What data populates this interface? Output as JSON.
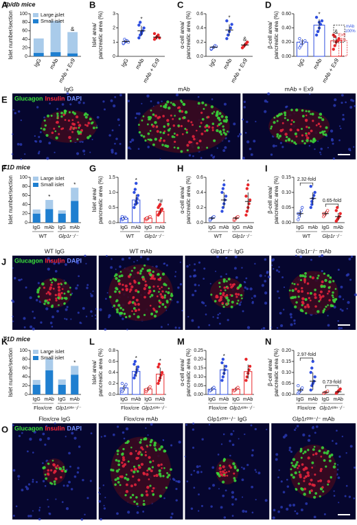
{
  "sections": [
    "db/db mice",
    "T1D mice",
    "T1D mice"
  ],
  "images": [
    {
      "panel": "E",
      "stains": [
        "Glucagon",
        "Insulin",
        "DAPI"
      ],
      "titles": [
        "IgG",
        "mAb",
        "mAb + Ex9"
      ]
    },
    {
      "panel": "J",
      "stains": [
        "Glucagon",
        "Insulin",
        "DAPI"
      ],
      "titles": [
        "WT IgG",
        "WT mAb",
        "Glp1r⁻/⁻ IgG",
        "Glp1r⁻/⁻ mAb"
      ]
    },
    {
      "panel": "O",
      "stains": [
        "Glucagon",
        "Insulin",
        "DAPI"
      ],
      "titles": [
        "Flox/cre IgG",
        "Flox/cre mAb",
        "Glp1rᵖᵃⁿ⁻/⁻ IgG",
        "Glp1rᵖᵃⁿ⁻/⁻ mAb"
      ]
    }
  ],
  "chart_data": [
    {
      "panel": "A",
      "type": "stacked_bar",
      "ylabel": [
        "Islet number/section"
      ],
      "categories": [
        "IgG",
        "mAb",
        "mAb + Ex9"
      ],
      "series": [
        {
          "name": "Small islet",
          "color": "#1f7fd0",
          "values": [
            8,
            10,
            7
          ]
        },
        {
          "name": "Large islet",
          "color": "#a9cbea",
          "values": [
            34,
            73,
            50
          ]
        }
      ],
      "sig": [
        null,
        "*",
        "&"
      ],
      "ylim": [
        0,
        100
      ],
      "yticks": [
        0,
        20,
        40,
        60,
        80,
        100
      ]
    },
    {
      "panel": "B",
      "type": "dotplot",
      "ylabel": [
        "Islet area/",
        "pancreatic area (%)"
      ],
      "categories": [
        "IgG",
        "mAb",
        "mAb + Ex9"
      ],
      "colors": [
        "#2f4fe0",
        "#2f4fe0",
        "#e8262a"
      ],
      "values": [
        1.05,
        1.8,
        1.35
      ],
      "errors": [
        0.1,
        0.35,
        0.15
      ],
      "points": [
        [
          0.9,
          1.0,
          1.05,
          1.1,
          1.0,
          0.95,
          1.2,
          1.1
        ],
        [
          1.3,
          1.5,
          1.7,
          1.8,
          2.0,
          2.2,
          2.4,
          1.6
        ],
        [
          1.2,
          1.3,
          1.4,
          1.5,
          1.3,
          1.6
        ]
      ],
      "sig": [
        null,
        "*",
        null
      ],
      "bars": false,
      "ylim": [
        0,
        3
      ],
      "yticks": [
        0,
        1,
        2,
        3
      ]
    },
    {
      "panel": "C",
      "type": "dotplot",
      "ylabel": [
        "α-cell area/",
        "pancreatic area (%)"
      ],
      "categories": [
        "IgG",
        "mAb",
        "mAb + Ex9"
      ],
      "colors": [
        "#2f4fe0",
        "#2f4fe0",
        "#e8262a"
      ],
      "values": [
        0.13,
        0.37,
        0.16
      ],
      "errors": [
        0.02,
        0.08,
        0.03
      ],
      "points": [
        [
          0.1,
          0.12,
          0.13,
          0.15,
          0.14,
          0.11
        ],
        [
          0.25,
          0.3,
          0.35,
          0.4,
          0.45,
          0.5,
          0.3
        ],
        [
          0.12,
          0.14,
          0.16,
          0.18,
          0.2
        ]
      ],
      "sig": [
        null,
        "*",
        "&"
      ],
      "bars": false,
      "ylim": [
        0,
        0.6
      ],
      "yticks": [
        {
          "value": 0,
          "label": "0.0"
        },
        0.2,
        0.4,
        0.6
      ]
    },
    {
      "panel": "D",
      "type": "dotplot",
      "ylabel": [
        "β-cell area/",
        "pancreatic area (%)"
      ],
      "categories": [
        "IgG",
        "mAb",
        "mAb + Ex9"
      ],
      "colors": [
        "#2f4fe0",
        "#2f4fe0",
        "#e8262a"
      ],
      "values": [
        0.2,
        0.44,
        0.22
      ],
      "errors": [
        0.04,
        0.08,
        0.06
      ],
      "points": [
        [
          0.12,
          0.15,
          0.18,
          0.2,
          0.22,
          0.25,
          0.2
        ],
        [
          0.3,
          0.35,
          0.4,
          0.45,
          0.5,
          0.55,
          0.35,
          0.48
        ],
        [
          0.1,
          0.15,
          0.2,
          0.22,
          0.25,
          0.3,
          0.28
        ]
      ],
      "sig": [
        null,
        "*",
        "&"
      ],
      "bars": true,
      "boxes": [
        {
          "lines": [
            "mAb",
            "100%"
          ],
          "color": "#2f4fe0"
        },
        {
          "lines": [
            "Ex9",
            "94%"
          ],
          "color": "#e8262a"
        }
      ],
      "ylim": [
        0,
        0.6
      ],
      "yticks": [
        {
          "value": 0,
          "label": "0.00"
        },
        {
          "value": 0.2,
          "label": "0.20"
        },
        {
          "value": 0.4,
          "label": "0.40"
        },
        {
          "value": 0.6,
          "label": "0.60"
        }
      ]
    },
    {
      "panel": "F",
      "type": "stacked_bar",
      "ylabel": [
        "Islet number/section"
      ],
      "categories": [
        "IgG",
        "mAb",
        "IgG",
        "mAb"
      ],
      "groups": [
        "WT",
        "Glp1r⁻/⁻"
      ],
      "series": [
        {
          "name": "Small islet",
          "color": "#1f7fd0",
          "values": [
            20,
            30,
            20,
            48
          ]
        },
        {
          "name": "Large islet",
          "color": "#a9cbea",
          "values": [
            9,
            20,
            7,
            29
          ]
        }
      ],
      "sig": [
        null,
        "*",
        null,
        "*"
      ],
      "ylim": [
        0,
        100
      ],
      "yticks": [
        0,
        20,
        40,
        60,
        80,
        100
      ]
    },
    {
      "panel": "G",
      "type": "dotplot",
      "ylabel": [
        "Islet area/",
        "pancreatic area (%)"
      ],
      "categories": [
        "IgG",
        "mAb",
        "IgG",
        "mAb"
      ],
      "groups": [
        "WT",
        "Glp1r⁻/⁻"
      ],
      "colors": [
        "#2f4fe0",
        "#2f4fe0",
        "#e8262a",
        "#e8262a"
      ],
      "values": [
        0.15,
        0.75,
        0.15,
        0.38
      ],
      "errors": [
        0.03,
        0.18,
        0.03,
        0.1
      ],
      "points": [
        [
          0.1,
          0.12,
          0.15,
          0.18,
          0.14,
          0.2,
          0.13
        ],
        [
          0.5,
          0.6,
          0.7,
          0.8,
          0.9,
          1.0,
          1.1,
          1.3,
          0.65
        ],
        [
          0.1,
          0.12,
          0.15,
          0.18,
          0.2,
          0.14,
          0.16
        ],
        [
          0.25,
          0.3,
          0.35,
          0.4,
          0.45,
          0.5,
          0.55,
          0.6
        ]
      ],
      "sig": [
        null,
        "*",
        null,
        "*#"
      ],
      "bars": true,
      "ylim": [
        0,
        1.5
      ],
      "yticks": [
        {
          "value": 0,
          "label": "0.0"
        },
        0.5,
        {
          "value": 1,
          "label": "1.0"
        },
        1.5
      ]
    },
    {
      "panel": "H",
      "type": "dotplot",
      "ylabel": [
        "α-cell area/",
        "pancreatic area (%)"
      ],
      "categories": [
        "IgG",
        "mAb",
        "IgG",
        "mAb"
      ],
      "groups": [
        "WT",
        "Glp1r⁻/⁻"
      ],
      "colors": [
        "#2f4fe0",
        "#2f4fe0",
        "#e8262a",
        "#e8262a"
      ],
      "values": [
        0.06,
        0.3,
        0.06,
        0.28
      ],
      "errors": [
        0.02,
        0.1,
        0.02,
        0.12
      ],
      "points": [
        [
          0.03,
          0.05,
          0.06,
          0.07,
          0.08,
          0.05
        ],
        [
          0.15,
          0.2,
          0.25,
          0.3,
          0.35,
          0.4,
          0.45,
          0.5
        ],
        [
          0.03,
          0.04,
          0.06,
          0.07,
          0.08,
          0.05
        ],
        [
          0.1,
          0.15,
          0.2,
          0.25,
          0.3,
          0.35,
          0.45,
          0.5
        ]
      ],
      "sig": [
        null,
        "*",
        null,
        "*"
      ],
      "bars": false,
      "ylim": [
        0,
        0.6
      ],
      "yticks": [
        {
          "value": 0,
          "label": "0.0"
        },
        0.2,
        0.4,
        0.6
      ]
    },
    {
      "panel": "I",
      "type": "dotplot",
      "ylabel": [
        "β-cell area/",
        "pancreatic area (%)"
      ],
      "categories": [
        "IgG",
        "mAb",
        "IgG",
        "mAb"
      ],
      "groups": [
        "WT",
        "Glp1r⁻/⁻"
      ],
      "colors": [
        "#2f4fe0",
        "#2f4fe0",
        "#e8262a",
        "#e8262a"
      ],
      "values": [
        0.03,
        0.08,
        0.03,
        0.02
      ],
      "errors": [
        0.01,
        0.02,
        0.008,
        0.012
      ],
      "points": [
        [
          0.01,
          0.02,
          0.03,
          0.04,
          0.05,
          0.03
        ],
        [
          0.05,
          0.06,
          0.08,
          0.09,
          0.1,
          0.12,
          0.07
        ],
        [
          0.02,
          0.025,
          0.03,
          0.035,
          0.04,
          0.03
        ],
        [
          0.005,
          0.01,
          0.015,
          0.02,
          0.03,
          0.04,
          0.05
        ]
      ],
      "brackets": [
        "2.32-fold",
        "0.65-fold"
      ],
      "bars": false,
      "ylim": [
        0,
        0.15
      ],
      "yticks": [
        {
          "value": 0,
          "label": "0.00"
        },
        0.05,
        {
          "value": 0.1,
          "label": "0.10"
        },
        0.15
      ]
    },
    {
      "panel": "K",
      "type": "stacked_bar",
      "ylabel": [
        "Islet number/section"
      ],
      "categories": [
        "IgG",
        "mAb",
        "IgG",
        "mAb"
      ],
      "groups": [
        "Flox/cre",
        "Glp1rᵖᵃⁿ⁻/⁻"
      ],
      "series": [
        {
          "name": "Small islet",
          "color": "#1f7fd0",
          "values": [
            22,
            55,
            22,
            45
          ]
        },
        {
          "name": "Large islet",
          "color": "#a9cbea",
          "values": [
            11,
            27,
            12,
            20
          ]
        }
      ],
      "sig": [
        null,
        "*",
        null,
        "*"
      ],
      "ylim": [
        0,
        100
      ],
      "yticks": [
        0,
        20,
        40,
        60,
        80,
        100
      ]
    },
    {
      "panel": "L",
      "type": "dotplot",
      "ylabel": [
        "Islet area/",
        "pancreatic area (%)"
      ],
      "categories": [
        "IgG",
        "mAb",
        "IgG",
        "mAb"
      ],
      "groups": [
        "Flox/cre",
        "Glp1rᵖᵃⁿ⁻/⁻"
      ],
      "colors": [
        "#2f4fe0",
        "#2f4fe0",
        "#e8262a",
        "#e8262a"
      ],
      "values": [
        0.12,
        0.42,
        0.1,
        0.37
      ],
      "errors": [
        0.05,
        0.1,
        0.03,
        0.12
      ],
      "points": [
        [
          0.05,
          0.1,
          0.12,
          0.15,
          0.18,
          0.2,
          0.08
        ],
        [
          0.3,
          0.35,
          0.4,
          0.45,
          0.5,
          0.55,
          0.6
        ],
        [
          0.05,
          0.08,
          0.1,
          0.12,
          0.14,
          0.09
        ],
        [
          0.2,
          0.25,
          0.3,
          0.35,
          0.4,
          0.5,
          0.55
        ]
      ],
      "sig": [
        null,
        "*",
        null,
        "*"
      ],
      "bars": true,
      "ylim": [
        0,
        0.8
      ],
      "yticks": [
        {
          "value": 0,
          "label": "0.0"
        },
        0.2,
        0.4,
        0.6,
        0.8
      ]
    },
    {
      "panel": "M",
      "type": "dotplot",
      "ylabel": [
        "α-cell area/",
        "pancreatic area (%)"
      ],
      "categories": [
        "IgG",
        "mAb",
        "IgG",
        "mAb"
      ],
      "groups": [
        "Flox/cre",
        "Glp1rᵖᵃⁿ⁻/⁻"
      ],
      "colors": [
        "#2f4fe0",
        "#2f4fe0",
        "#e8262a",
        "#e8262a"
      ],
      "values": [
        0.03,
        0.14,
        0.03,
        0.13
      ],
      "errors": [
        0.01,
        0.03,
        0.008,
        0.04
      ],
      "points": [
        [
          0.02,
          0.025,
          0.03,
          0.035,
          0.04
        ],
        [
          0.08,
          0.1,
          0.12,
          0.14,
          0.16,
          0.18,
          0.2
        ],
        [
          0.02,
          0.025,
          0.03,
          0.035,
          0.04
        ],
        [
          0.08,
          0.1,
          0.12,
          0.14,
          0.16,
          0.2
        ]
      ],
      "sig": [
        null,
        "*",
        null,
        null
      ],
      "bars": true,
      "ylim": [
        0,
        0.25
      ],
      "yticks": [
        {
          "value": 0,
          "label": "0.00"
        },
        0.05,
        {
          "value": 0.1,
          "label": "0.10"
        },
        0.15,
        {
          "value": 0.2,
          "label": "0.20"
        },
        0.25
      ]
    },
    {
      "panel": "N",
      "type": "dotplot",
      "ylabel": [
        "β-cell area/",
        "pancreatic area (%)"
      ],
      "categories": [
        "IgG",
        "mAb",
        "IgG",
        "mAb"
      ],
      "groups": [
        "Flox/cre",
        "Glp1rᵖᵃⁿ⁻/⁻"
      ],
      "colors": [
        "#2f4fe0",
        "#2f4fe0",
        "#e8262a",
        "#e8262a"
      ],
      "values": [
        0.02,
        0.06,
        0.01,
        0.012
      ],
      "errors": [
        0.01,
        0.04,
        0.004,
        0.006
      ],
      "points": [
        [
          0.005,
          0.01,
          0.015,
          0.02,
          0.03,
          0.04
        ],
        [
          0.02,
          0.04,
          0.05,
          0.06,
          0.08,
          0.1,
          0.12,
          0.15
        ],
        [
          0.005,
          0.008,
          0.01,
          0.012,
          0.015
        ],
        [
          0.005,
          0.01,
          0.015,
          0.02,
          0.025
        ]
      ],
      "brackets": [
        "2.97-fold",
        "0.73-fold"
      ],
      "bars": false,
      "ylim": [
        0,
        0.2
      ],
      "yticks": [
        {
          "value": 0,
          "label": "0.00"
        },
        0.05,
        {
          "value": 0.1,
          "label": "0.10"
        },
        0.15,
        {
          "value": 0.2,
          "label": "0.20"
        }
      ]
    }
  ]
}
